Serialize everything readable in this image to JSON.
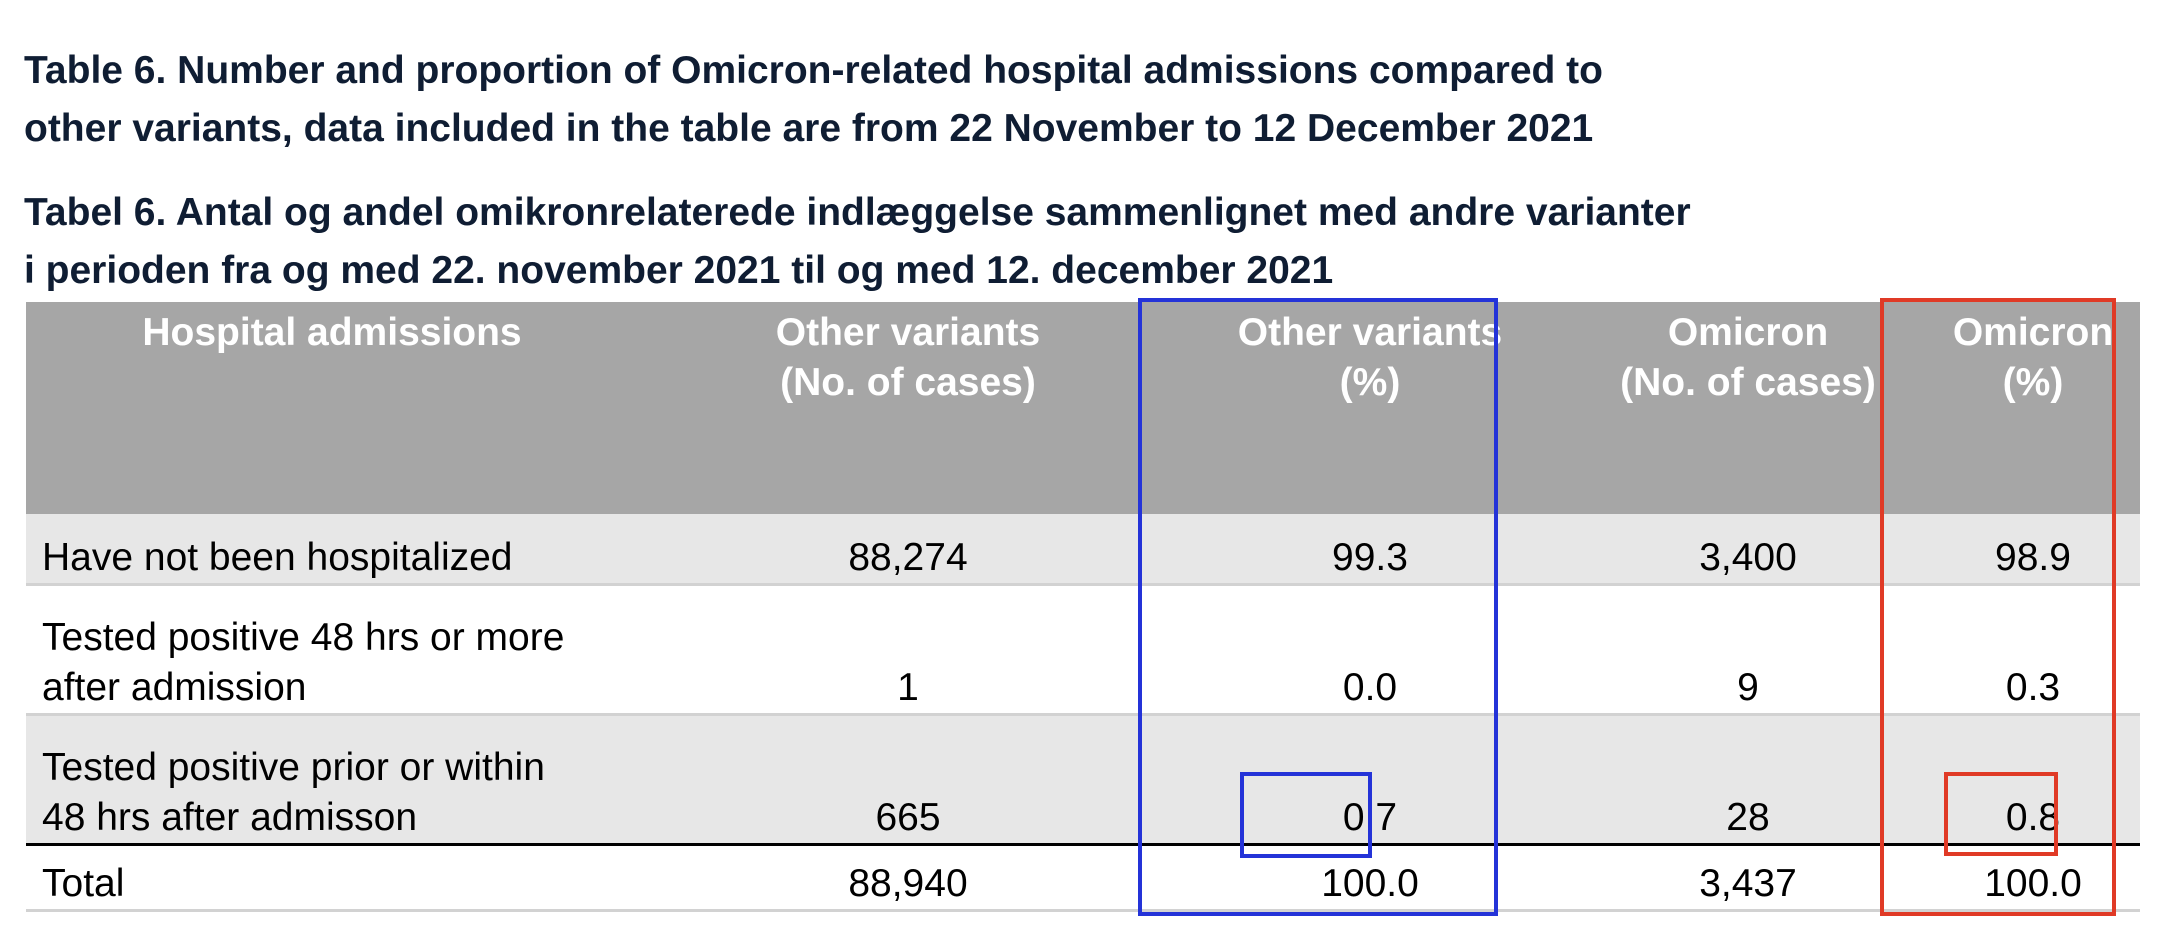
{
  "captions": {
    "english": {
      "line1": "Table 6. Number and proportion of Omicron-related hospital admissions compared to",
      "line2": "other variants, data included in the table are from 22 November to 12 December 2021"
    },
    "danish": {
      "line1": "Tabel 6. Antal og andel omikronrelaterede indlæggelse sammenlignet med andre varianter",
      "line2": "i perioden fra og med 22. november 2021 til og med 12. december 2021"
    }
  },
  "table": {
    "headers": [
      {
        "line1": "Hospital admissions",
        "line2": ""
      },
      {
        "line1": "Other variants",
        "line2": "(No. of cases)"
      },
      {
        "line1": "Other variants",
        "line2": "(%)"
      },
      {
        "line1": "Omicron",
        "line2": "(No. of cases)"
      },
      {
        "line1": "Omicron",
        "line2": "(%)"
      }
    ],
    "rows": [
      {
        "label_line1": "Have not been hospitalized",
        "label_line2": "",
        "other_cases": "88,274",
        "other_pct": "99.3",
        "omicron_cases": "3,400",
        "omicron_pct": "98.9"
      },
      {
        "label_line1": "Tested positive 48 hrs or more",
        "label_line2": "after admission",
        "other_cases": "1",
        "other_pct": "0.0",
        "omicron_cases": "9",
        "omicron_pct": "0.3"
      },
      {
        "label_line1": "Tested positive prior or within",
        "label_line2": "48 hrs after admisson",
        "other_cases": "665",
        "other_pct": "0.7",
        "omicron_cases": "28",
        "omicron_pct": "0.8"
      },
      {
        "label_line1": "Total",
        "label_line2": "",
        "other_cases": "88,940",
        "other_pct": "100.0",
        "omicron_cases": "3,437",
        "omicron_pct": "100.0"
      }
    ]
  },
  "highlights": {
    "blue": "#2433d8",
    "red": "#e03a26"
  },
  "colors": {
    "header_fill": "#a6a6a6",
    "row_shade": "#e7e7e7",
    "caption_text": "#0f1d33"
  }
}
